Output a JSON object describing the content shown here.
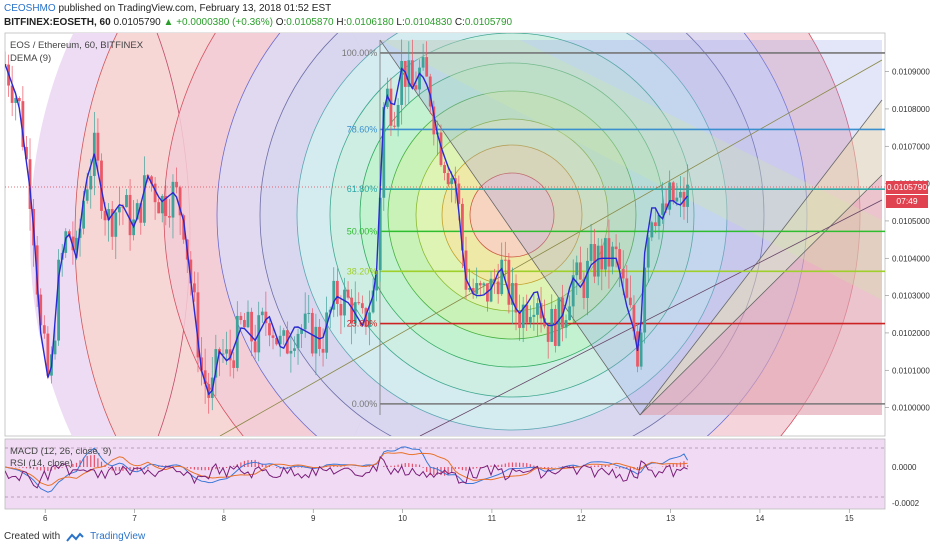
{
  "header": {
    "author": "CEOSHMO",
    "published": "published on TradingView.com, February 13, 2018 01:52 EST",
    "symbol": "BITFINEX:EOSETH, 60",
    "last": "0.0105790",
    "change": "▲ +0.0000380 (+0.36%)",
    "open_label": "O:",
    "open": "0.0105870",
    "high_label": "H:",
    "high": "0.0106180",
    "low_label": "L:",
    "low": "0.0104830",
    "close_label": "C:",
    "close": "0.0105790"
  },
  "overlay": {
    "title": "EOS / Ethereum, 60, BITFINEX",
    "dema": "DEMA (9)",
    "macd": "MACD (12, 26, close, 9)",
    "rsi": "RSI (14, close)"
  },
  "price_tag": {
    "value": "0.0105790",
    "countdown": "07:49",
    "color": "#e0434f"
  },
  "footer": {
    "created_with": "Created with",
    "brand": "TradingView"
  },
  "colors": {
    "up_candle": "#3fa39a",
    "down_candle": "#ea5968",
    "dema": "#2a2ad0",
    "fib_100": "#777777",
    "fib_786": "#3a8fcf",
    "fib_618": "#2aa7a7",
    "fib_50": "#2ebd2e",
    "fib_382": "#9fcf2a",
    "fib_236": "#cc2222",
    "fib_0": "#777777",
    "macd_line": "#3a78d8",
    "signal_line": "#e8722a",
    "rsi_line": "#7a1f7a",
    "histogram": "#e5506a"
  },
  "chart_data": {
    "type": "candlestick",
    "title": "EOS / Ethereum, 60, BITFINEX",
    "x_ticks": [
      "6",
      "7",
      "8",
      "9",
      "10",
      "11",
      "12",
      "13",
      "14",
      "15"
    ],
    "x_range": [
      5.55,
      15.4
    ],
    "y_ticks": [
      "0.0109000",
      "0.0108000",
      "0.0107000",
      "0.0106000",
      "0.0105000",
      "0.0104000",
      "0.0103000",
      "0.0102000",
      "0.0101000",
      "0.0100000"
    ],
    "y_range": [
      0.00994,
      0.01099
    ],
    "indicator_ticks": [
      "0.0000",
      "-0.0002"
    ],
    "price_path": [
      [
        5.55,
        0.01092
      ],
      [
        5.7,
        0.01082
      ],
      [
        5.85,
        0.01055
      ],
      [
        5.95,
        0.0102
      ],
      [
        6.05,
        0.01005
      ],
      [
        6.15,
        0.01035
      ],
      [
        6.25,
        0.01048
      ],
      [
        6.35,
        0.0104
      ],
      [
        6.45,
        0.0106
      ],
      [
        6.55,
        0.01068
      ],
      [
        6.7,
        0.0105
      ],
      [
        6.85,
        0.01055
      ],
      [
        7.0,
        0.01048
      ],
      [
        7.15,
        0.01062
      ],
      [
        7.3,
        0.01055
      ],
      [
        7.45,
        0.01058
      ],
      [
        7.55,
        0.0105
      ],
      [
        7.65,
        0.0103
      ],
      [
        7.75,
        0.0101
      ],
      [
        7.85,
        0.01002
      ],
      [
        7.95,
        0.01015
      ],
      [
        8.05,
        0.01012
      ],
      [
        8.2,
        0.01022
      ],
      [
        8.35,
        0.01018
      ],
      [
        8.5,
        0.01025
      ],
      [
        8.65,
        0.01015
      ],
      [
        8.8,
        0.01022
      ],
      [
        8.95,
        0.0102
      ],
      [
        9.1,
        0.01018
      ],
      [
        9.25,
        0.0103
      ],
      [
        9.4,
        0.01028
      ],
      [
        9.55,
        0.01022
      ],
      [
        9.7,
        0.01032
      ],
      [
        9.8,
        0.01085
      ],
      [
        9.9,
        0.0108
      ],
      [
        10.0,
        0.01092
      ],
      [
        10.1,
        0.01085
      ],
      [
        10.2,
        0.0109
      ],
      [
        10.3,
        0.01085
      ],
      [
        10.4,
        0.01072
      ],
      [
        10.5,
        0.01065
      ],
      [
        10.6,
        0.0106
      ],
      [
        10.7,
        0.01035
      ],
      [
        10.8,
        0.0103
      ],
      [
        10.9,
        0.0103
      ],
      [
        11.0,
        0.01032
      ],
      [
        11.1,
        0.01038
      ],
      [
        11.2,
        0.0103
      ],
      [
        11.3,
        0.01025
      ],
      [
        11.4,
        0.01028
      ],
      [
        11.5,
        0.01032
      ],
      [
        11.6,
        0.01022
      ],
      [
        11.7,
        0.01022
      ],
      [
        11.8,
        0.01025
      ],
      [
        11.9,
        0.01035
      ],
      [
        12.0,
        0.01032
      ],
      [
        12.1,
        0.01038
      ],
      [
        12.2,
        0.0104
      ],
      [
        12.3,
        0.0104
      ],
      [
        12.4,
        0.0104
      ],
      [
        12.5,
        0.01028
      ],
      [
        12.6,
        0.0102
      ],
      [
        12.65,
        0.01012
      ],
      [
        12.7,
        0.0104
      ],
      [
        12.8,
        0.01055
      ],
      [
        12.9,
        0.0105
      ],
      [
        13.0,
        0.01056
      ],
      [
        13.1,
        0.01054
      ],
      [
        13.2,
        0.01057
      ]
    ],
    "fibonacci_retracement": {
      "levels": [
        {
          "label": "100.00%",
          "value": 0.01095
        },
        {
          "label": "78.60%",
          "value": 0.010745
        },
        {
          "label": "61.80%",
          "value": 0.010585
        },
        {
          "label": "50.00%",
          "value": 0.010472
        },
        {
          "label": "38.20%",
          "value": 0.010365
        },
        {
          "label": "23.60%",
          "value": 0.010225
        },
        {
          "label": "0.00%",
          "value": 0.01001
        }
      ],
      "x_start": 9.75,
      "x_end": 15.4
    },
    "macd": {
      "fast": 12,
      "slow": 26,
      "source": "close",
      "signal": 9
    },
    "rsi": {
      "length": 14,
      "source": "close"
    },
    "dema": {
      "length": 9
    },
    "grid": false
  }
}
